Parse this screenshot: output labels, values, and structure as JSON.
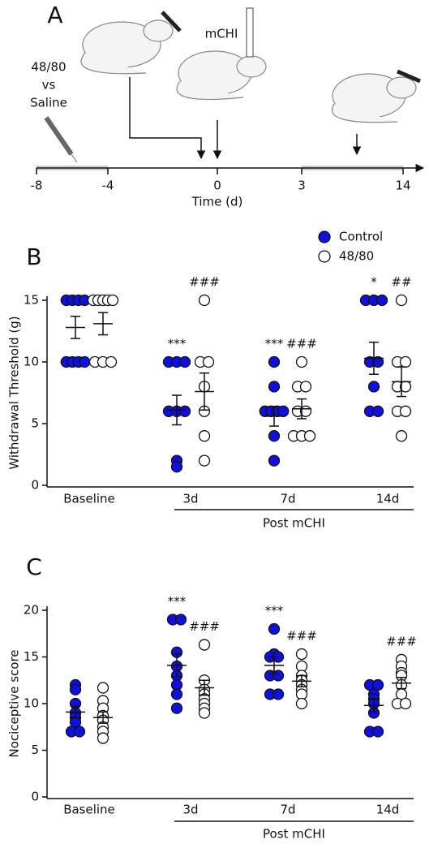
{
  "chart_data": [
    {
      "type": "timeline",
      "panel": "A",
      "xlabel": "Time (d)",
      "ticks": [
        "-8",
        "-4",
        "0",
        "3",
        "14"
      ],
      "treatment": [
        "48/80",
        "vs",
        "Saline"
      ],
      "procedure": "mCHI"
    },
    {
      "type": "dot",
      "panel": "B",
      "ylabel": "Withdrawal Threshold (g)",
      "categories": [
        "Baseline",
        "3d",
        "7d",
        "14d"
      ],
      "group_label": "Post mCHI",
      "ylim": [
        0,
        15
      ],
      "yticks": [
        0,
        5,
        10,
        15
      ],
      "series": [
        {
          "name": "Control",
          "color": "#1010dd",
          "points": [
            [
              15,
              15,
              15,
              15,
              10,
              10,
              10,
              10
            ],
            [
              10,
              10,
              10,
              6,
              6,
              6,
              2,
              1.5
            ],
            [
              10,
              8,
              6,
              6,
              6,
              6,
              4,
              2
            ],
            [
              15,
              15,
              15,
              10,
              10,
              8,
              6,
              6
            ]
          ],
          "mean": [
            12.8,
            6.1,
            5.6,
            10.3
          ],
          "sem": [
            0.9,
            1.2,
            0.8,
            1.3
          ],
          "significance": [
            null,
            "***",
            "***",
            "*"
          ]
        },
        {
          "name": "48/80",
          "color": "#ffffff",
          "points": [
            [
              15,
              15,
              15,
              15,
              15,
              10,
              10,
              10
            ],
            [
              15,
              10,
              10,
              8,
              6,
              4,
              2
            ],
            [
              10,
              8,
              8,
              6,
              6,
              4,
              4,
              4
            ],
            [
              15,
              10,
              10,
              8,
              8,
              6,
              6,
              4
            ]
          ],
          "mean": [
            13.1,
            7.6,
            6.2,
            8.4
          ],
          "sem": [
            0.9,
            1.5,
            0.8,
            1.2
          ],
          "significance": [
            null,
            "###",
            "###",
            "##"
          ]
        }
      ]
    },
    {
      "type": "dot",
      "panel": "C",
      "ylabel": "Nociceptive score",
      "categories": [
        "Baseline",
        "3d",
        "7d",
        "14d"
      ],
      "group_label": "Post mCHI",
      "ylim": [
        0,
        20
      ],
      "yticks": [
        0,
        5,
        10,
        15,
        20
      ],
      "series": [
        {
          "name": "Control",
          "color": "#1010dd",
          "points": [
            [
              12,
              11.5,
              10,
              9,
              8.5,
              8,
              7,
              7
            ],
            [
              19,
              19,
              15.5,
              14,
              13,
              12,
              11,
              9.5
            ],
            [
              18,
              15.3,
              15,
              15,
              13,
              13,
              11,
              11
            ],
            [
              12,
              12,
              11,
              10.5,
              10,
              9,
              7,
              7
            ]
          ],
          "mean": [
            9.1,
            14.1,
            14.1,
            9.8
          ],
          "sem": [
            0.6,
            1.2,
            0.9,
            0.7
          ],
          "significance": [
            null,
            "***",
            "***",
            null
          ]
        },
        {
          "name": "48/80",
          "color": "#ffffff",
          "points": [
            [
              11.7,
              10.3,
              9.5,
              8.7,
              8.2,
              7.5,
              7,
              6.3
            ],
            [
              16.3,
              12.5,
              11.5,
              11,
              10.5,
              10,
              9.5,
              9
            ],
            [
              15.3,
              14,
              13,
              12.5,
              12,
              11.5,
              11,
              10
            ],
            [
              14.7,
              14,
              13.3,
              13,
              12,
              11,
              10,
              10
            ]
          ],
          "mean": [
            8.5,
            11.7,
            12.4,
            12.2
          ],
          "sem": [
            0.6,
            0.8,
            0.6,
            0.6
          ],
          "significance": [
            null,
            "###",
            "###",
            "###"
          ]
        }
      ]
    }
  ]
}
